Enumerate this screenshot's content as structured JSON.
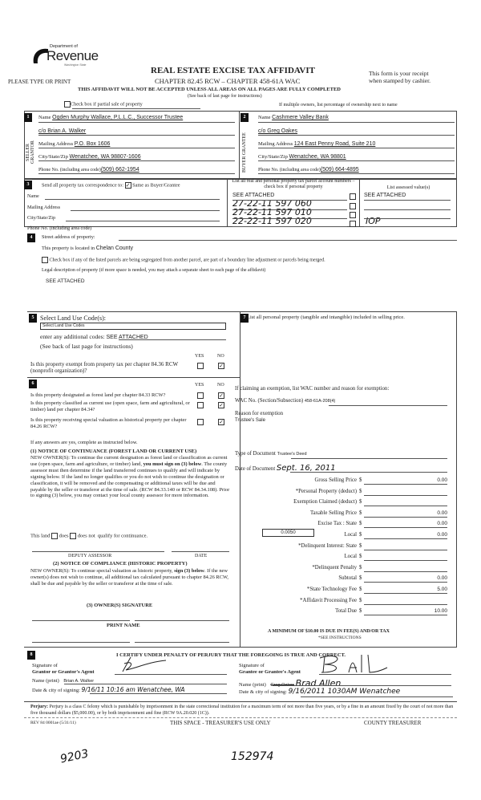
{
  "header": {
    "logo_top": "Department of",
    "logo_main": "Revenue",
    "logo_sub": "Washington State",
    "type_or_print": "PLEASE TYPE OR PRINT",
    "title": "REAL ESTATE EXCISE TAX AFFIDAVIT",
    "chapters": "CHAPTER 82.45 RCW – CHAPTER 458-61A WAC",
    "receipt_note_1": "This form is your receipt",
    "receipt_note_2": "when stamped by cashier.",
    "warning": "THIS AFFIDAVIT WILL NOT BE ACCEPTED UNLESS ALL AREAS ON ALL PAGES ARE FULLY COMPLETED",
    "see_back": "(See back of last page for instructions)",
    "partial_sale": "Check box if partial sale of property",
    "multiple_owners": "If multiple owners, list percentage of ownership next to name"
  },
  "seller": {
    "num": "1",
    "side": "SELLER GRANTOR",
    "name_label": "Name",
    "name": "Ogden Murphy Wallace, P.L.L.C., Successor Trustee",
    "co": "c/o Brian A. Walker",
    "address_label": "Mailing Address",
    "address": "P.O. Box 1606",
    "city_label": "City/State/Zip",
    "city": "Wenatchee, WA  98807-1606",
    "phone_label": "Phone No. (including area code)",
    "phone": "(509) 662-1954"
  },
  "buyer": {
    "num": "2",
    "side": "BUYER GRANTEE",
    "name_label": "Name",
    "name": "Cashmere Valley Bank",
    "co": "c/o Greg Oakes",
    "address_label": "Mailing Address",
    "address": "124 East Penny Road, Suite 210",
    "city_label": "City/State/Zip",
    "city": "Wenatchee, WA  98801",
    "phone_label": "Phone No. (including area code)",
    "phone": "(509) 664-4895"
  },
  "sec3": {
    "num": "3",
    "send_label": "Send all property tax correspondence to:",
    "same_label": "Same as Buyer/Grantee",
    "same_checked": true,
    "name_label": "Name",
    "address_label": "Mailing Address",
    "city_label": "City/State/Zip",
    "phone_label": "Phone No. (including area code)",
    "parcel_header": "List all real and personal property tax parcel account numbers – check box if personal property",
    "assessed_header": "List assessed value(s)",
    "parcels": [
      "SEE ATTACHED",
      "27-22-11 597 060",
      "27-22-11 597 010",
      "22-22-11 597 020"
    ],
    "assessed": [
      "SEE ATTACHED",
      "",
      "",
      "IOP"
    ]
  },
  "sec4": {
    "num": "4",
    "street_label": "Street address of property:",
    "located_label": "This property is located in",
    "county": "Chelan County",
    "segregated_label": "Check box if any of the listed parcels are being segregated from another parcel, are part of a boundary line adjustment or parcels being merged.",
    "legal_label": "Legal description of property (if more space is needed, you may attach a separate sheet to each page of the affidavit)",
    "legal": "SEE ATTACHED"
  },
  "sec5": {
    "num": "5",
    "land_use_label": "Select Land Use Code(s):",
    "land_use_select": "Select Land Use Codes",
    "additional_label": "enter any additional codes:",
    "additional": "SEE ATTACHED",
    "see_back": "(See back of last page for instructions)",
    "yes": "YES",
    "no": "NO",
    "exempt_q": "Is this property exempt from property tax per chapter 84.36 RCW (nonprofit organization)?"
  },
  "sec6": {
    "num": "6",
    "yes": "YES",
    "no": "NO",
    "q1": "Is this property designated as forest land per chapter 84.33 RCW?",
    "q2": "Is this property classified as current use (open space, farm and agricultural, or timber) land per chapter 84.34?",
    "q3": "Is this property receiving special valuation as historical property per chapter 84.26 RCW?",
    "if_yes": "If any answers are yes, complete as instructed below.",
    "n1_title": "(1) NOTICE OF CONTINUANCE  (FOREST LAND OR CURRENT USE)",
    "n1_text_a": "NEW OWNER(S): To continue the current designation as forest land or classification as current use (open space, farm and agriculture, or timber) land,",
    "n1_bold": "you must sign on (3) below",
    "n1_text_b": ". The county assessor must then determine if the land transferred continues to qualify and will indicate by signing below. If the land no longer qualifies or you do not wish to continue the designation or classification, it will be removed and the compensating or additional taxes will be due and payable by the seller or transferor at the time of sale. (RCW 84.33.140 or RCW 84.34.108). Prior to signing (3) below, you may contact your local county assessor for more information.",
    "this_land": "This land",
    "does": "does",
    "does_not": "does not",
    "qualify": "qualify for continuance.",
    "deputy": "DEPUTY ASSESSOR",
    "date": "DATE",
    "n2_title": "(2) NOTICE OF COMPLIANCE (HISTORIC PROPERTY)",
    "n2_text_a": "NEW OWNER(S): To continue special valuation as historic property,",
    "n2_bold": "sign (3) below",
    "n2_text_b": ". If the new owner(s) does not wish to continue, all additional tax calculated pursuant to chapter 84.26 RCW, shall be due and payable by the seller or transferor at the time of sale.",
    "n3_title": "(3)  OWNER(S) SIGNATURE",
    "print_name": "PRINT NAME"
  },
  "sec7": {
    "num": "7",
    "personal_label": "List all  personal property (tangible and intangible) included in selling price.",
    "exemption_label": "If claiming an exemption, list WAC number and reason for exemption:",
    "wac_label": "WAC No. (Section/Subsection)",
    "wac": "458-61A-208(4)",
    "reason_label": "Reason for exemption",
    "reason": "Trustee's Sale",
    "doc_type_label": "Type of Document",
    "doc_type": "Trustee's Deed",
    "doc_date_label": "Date of Document",
    "doc_date": "Sept. 16, 2011",
    "local_rate": "0.0050",
    "fees": [
      {
        "label": "Gross Selling Price",
        "value": "0.00"
      },
      {
        "label": "*Personal Property (deduct)",
        "value": ""
      },
      {
        "label": "Exemption Claimed (deduct)",
        "value": ""
      },
      {
        "label": "Taxable Selling Price",
        "value": "0.00"
      },
      {
        "label": "Excise Tax : State",
        "value": "0.00"
      },
      {
        "label": "Local",
        "value": "0.00"
      },
      {
        "label": "*Delinquent Interest: State",
        "value": ""
      },
      {
        "label": "Local",
        "value": ""
      },
      {
        "label": "*Delinquent Penalty",
        "value": ""
      },
      {
        "label": "Subtotal",
        "value": "0.00"
      },
      {
        "label": "*State Technology Fee",
        "value": "5.00"
      },
      {
        "label": "*Affidavit Processing Fee",
        "value": ""
      },
      {
        "label": "Total Due",
        "value": "10.00"
      }
    ],
    "currency": "$",
    "minimum": "A MINIMUM OF $10.00 IS DUE IN FEE(S) AND/OR TAX",
    "see_instructions": "*SEE INSTRUCTIONS"
  },
  "sec8": {
    "num": "8",
    "certify": "I CERTIFY UNDER PENALTY OF PERJURY THAT THE FOREGOING IS TRUE AND CORRECT.",
    "grantor_sig_1": "Signature of",
    "grantor_sig_2": "Grantor or Grantor's Agent",
    "grantee_sig_1": "Signature of",
    "grantee_sig_2": "Grantee or Grantee's Agent",
    "name_label": "Name (print)",
    "grantor_name": "Brian A. Walker",
    "grantee_name_struck": "Greg Oakes",
    "grantee_name": "Brad Allen",
    "date_label": "Date & city of signing:",
    "grantor_date": "9/16/11  10:16 am  Wenatchee, WA",
    "grantee_date": "9/16/2011  1030AM  Wenatchee"
  },
  "footer": {
    "perjury_bold": "Perjury:",
    "perjury": "Perjury is a class C felony which is punishable by imprisonment in the state correctional institution for a maximum term of not more than five years, or by a fine in an amount fixed by the court of not more than five thousand dollars ($5,000.00), or by both imprisonment and fine (RCW 9A.20.020 (1C)).",
    "rev": "REV 84 0001ae (5/31/11)",
    "treasurer_space": "THIS SPACE - TREASURER'S USE ONLY",
    "county_treasurer": "COUNTY TREASURER",
    "hand_1": "9203",
    "hand_2": "152974"
  }
}
